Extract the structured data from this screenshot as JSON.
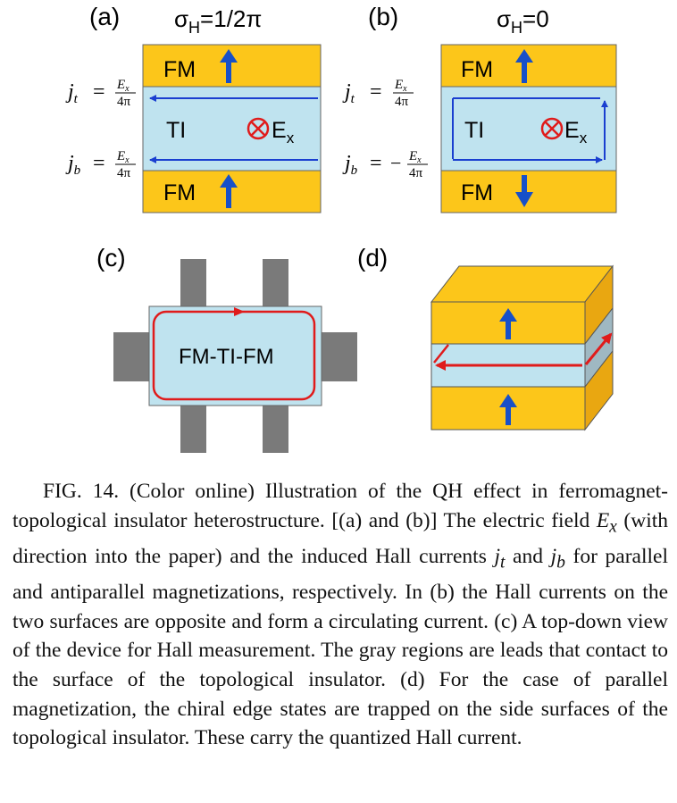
{
  "figure": {
    "panel_a": {
      "label": "(a)",
      "sigma_label": "σ",
      "sigma_sub": "H",
      "sigma_value": "=1/2π",
      "top_layer": "FM",
      "middle_layer": "TI",
      "bottom_layer": "FM",
      "field_label": "E",
      "field_sub": "x",
      "jt_lhs": "j",
      "jt_sub": "t",
      "jt_rhs_num": "E",
      "jt_rhs_num_sub": "x",
      "jt_rhs_den": "4π",
      "jb_lhs": "j",
      "jb_sub": "b",
      "jb_rhs_num": "E",
      "jb_rhs_num_sub": "x",
      "jb_rhs_den": "4π",
      "equals": "=",
      "minus": ""
    },
    "panel_b": {
      "label": "(b)",
      "sigma_label": "σ",
      "sigma_sub": "H",
      "sigma_value": "=0",
      "top_layer": "FM",
      "middle_layer": "TI",
      "bottom_layer": "FM",
      "field_label": "E",
      "field_sub": "x",
      "jt_lhs": "j",
      "jt_sub": "t",
      "jt_rhs_num": "E",
      "jt_rhs_num_sub": "x",
      "jt_rhs_den": "4π",
      "jb_lhs": "j",
      "jb_sub": "b",
      "jb_rhs_num": "E",
      "jb_rhs_num_sub": "x",
      "jb_rhs_den": "4π",
      "equals": "=",
      "minus": "−"
    },
    "panel_c": {
      "label": "(c)",
      "device_label": "FM-TI-FM"
    },
    "panel_d": {
      "label": "(d)"
    },
    "colors": {
      "fm": "#fcc61a",
      "ti": "#bfe3ef",
      "arrow_blue": "#1750c8",
      "hall_current": "#1a3fd0",
      "edge_red": "#e01b1b",
      "lead_gray": "#7a7a7a",
      "side_fm": "#e9a711",
      "side_ti": "#9fb8c2"
    }
  },
  "caption": {
    "lead": "FIG. 14. (Color online) Illustration of the QH effect in ferromagnet-topological insulator heterostructure. [(a) and (b)] The electric field ",
    "ex_sym": "E",
    "ex_sub": "x",
    "part2": " (with direction into the paper) and the induced Hall currents ",
    "jt_sym": "j",
    "jt_sub": "t",
    "and": " and ",
    "jb_sym": "j",
    "jb_sub": "b",
    "part3": " for parallel and antiparallel magnetizations, respectively. In (b) the Hall currents on the two surfaces are opposite and form a circulating current. (c) A top-down view of the device for Hall measurement. The gray regions are leads that contact to the surface of the topological insulator. (d) For the case of parallel magnetization, the chiral edge states are trapped on the side surfaces of the topological insulator. These carry the quantized Hall current."
  }
}
